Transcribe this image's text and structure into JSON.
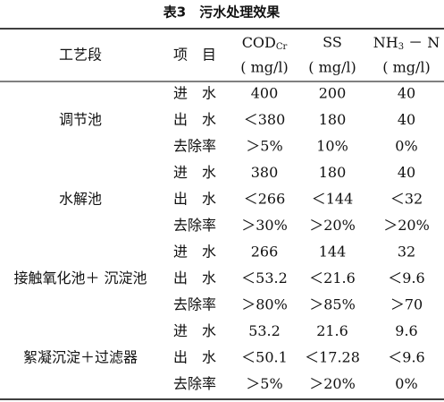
{
  "title": "表3　污水处理效果",
  "header": {
    "process": "工艺段",
    "item": "项　目",
    "cod": {
      "name": "COD",
      "sub": "Cr",
      "unit": "( mg/l)"
    },
    "ss": {
      "name": "SS",
      "unit": "( mg/l)"
    },
    "nh": {
      "name": "NH",
      "sub": "3",
      "suffix": " － N",
      "unit": "( mg/l)"
    }
  },
  "groups": [
    {
      "name": "调节池",
      "rows": [
        [
          "进　水",
          "400",
          "200",
          "40"
        ],
        [
          "出　水",
          "＜380",
          "180",
          "40"
        ],
        [
          "去除率",
          "＞5%",
          "10%",
          "0%"
        ]
      ]
    },
    {
      "name": "水解池",
      "rows": [
        [
          "进　水",
          "380",
          "180",
          "40"
        ],
        [
          "出　水",
          "＜266",
          "＜144",
          "＜32"
        ],
        [
          "去除率",
          "＞30%",
          "＞20%",
          "＞20%"
        ]
      ]
    },
    {
      "name": "接触氧化池＋ 沉淀池",
      "rows": [
        [
          "进　水",
          "266",
          "144",
          "32"
        ],
        [
          "出　水",
          "＜53.2",
          "＜21.6",
          "＜9.6"
        ],
        [
          "去除率",
          "＞80%",
          "＞85%",
          "＞70"
        ]
      ]
    },
    {
      "name": "絮凝沉淀＋过滤器",
      "rows": [
        [
          "进　水",
          "53.2",
          "21.6",
          "9.6"
        ],
        [
          "出　水",
          "＜50.1",
          "＜17.28",
          "＜9.6"
        ],
        [
          "去除率",
          "＞5%",
          "＞20%",
          "0%"
        ]
      ]
    }
  ]
}
